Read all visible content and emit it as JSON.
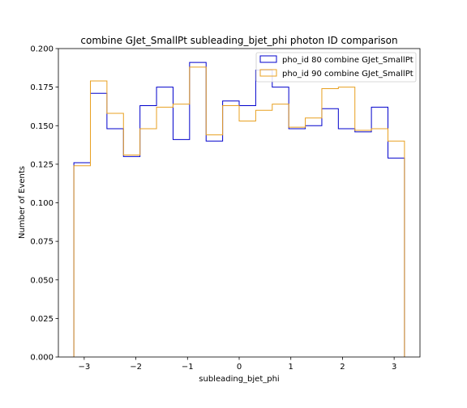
{
  "chart_data": {
    "type": "step",
    "title": "combine GJet_SmallPt subleading_bjet_phi photon ID comparison",
    "xlabel": "subleading_bjet_phi",
    "ylabel": "Number of Events",
    "xlim": [
      -3.5,
      3.5
    ],
    "ylim": [
      0,
      0.2
    ],
    "xticks": [
      -3,
      -2,
      -1,
      0,
      1,
      2,
      3
    ],
    "xtick_labels": [
      "−3",
      "−2",
      "−1",
      "0",
      "1",
      "2",
      "3"
    ],
    "yticks": [
      0,
      0.025,
      0.05,
      0.075,
      0.1,
      0.125,
      0.15,
      0.175,
      0.2
    ],
    "ytick_labels": [
      "0.000",
      "0.025",
      "0.050",
      "0.075",
      "0.100",
      "0.125",
      "0.150",
      "0.175",
      "0.200"
    ],
    "bin_edges": [
      -3.2,
      -2.88,
      -2.56,
      -2.24,
      -1.92,
      -1.6,
      -1.28,
      -0.96,
      -0.64,
      -0.32,
      0.0,
      0.32,
      0.64,
      0.96,
      1.28,
      1.6,
      1.92,
      2.24,
      2.56,
      2.88,
      3.2
    ],
    "legend_position": "top-right",
    "grid": false,
    "series": [
      {
        "name": "pho_id 80 combine GJet_SmallPt",
        "color": "#0000cc",
        "values": [
          0.126,
          0.171,
          0.148,
          0.13,
          0.163,
          0.175,
          0.141,
          0.191,
          0.14,
          0.166,
          0.163,
          0.186,
          0.175,
          0.148,
          0.15,
          0.161,
          0.148,
          0.146,
          0.162,
          0.129
        ]
      },
      {
        "name": "pho_id 90 combine GJet_SmallPt",
        "color": "#e8a020",
        "values": [
          0.124,
          0.179,
          0.158,
          0.131,
          0.148,
          0.162,
          0.164,
          0.188,
          0.144,
          0.163,
          0.153,
          0.16,
          0.164,
          0.149,
          0.155,
          0.174,
          0.175,
          0.147,
          0.148,
          0.14
        ]
      }
    ]
  }
}
